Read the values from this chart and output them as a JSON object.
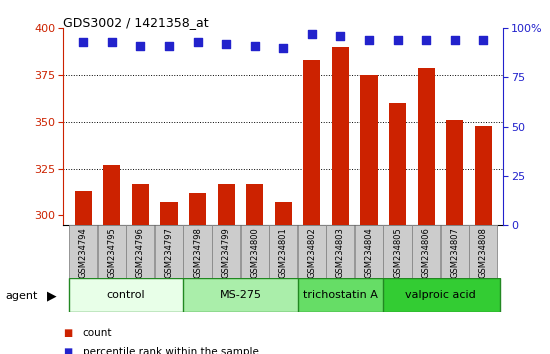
{
  "title": "GDS3002 / 1421358_at",
  "samples": [
    "GSM234794",
    "GSM234795",
    "GSM234796",
    "GSM234797",
    "GSM234798",
    "GSM234799",
    "GSM234800",
    "GSM234801",
    "GSM234802",
    "GSM234803",
    "GSM234804",
    "GSM234805",
    "GSM234806",
    "GSM234807",
    "GSM234808"
  ],
  "counts": [
    313,
    327,
    317,
    307,
    312,
    317,
    317,
    307,
    383,
    390,
    375,
    360,
    379,
    351,
    348
  ],
  "percentiles": [
    93,
    93,
    91,
    91,
    93,
    92,
    91,
    90,
    97,
    96,
    94,
    94,
    94,
    94,
    94
  ],
  "ylim_left": [
    295,
    400
  ],
  "ylim_right": [
    0,
    100
  ],
  "yticks_left": [
    300,
    325,
    350,
    375,
    400
  ],
  "yticks_right": [
    0,
    25,
    50,
    75,
    100
  ],
  "bar_color": "#cc2200",
  "dot_color": "#2222cc",
  "groups": [
    {
      "label": "control",
      "start": 0,
      "end": 3,
      "color": "#e8ffe8"
    },
    {
      "label": "MS-275",
      "start": 4,
      "end": 7,
      "color": "#aaeeaa"
    },
    {
      "label": "trichostatin A",
      "start": 8,
      "end": 10,
      "color": "#66dd66"
    },
    {
      "label": "valproic acid",
      "start": 11,
      "end": 14,
      "color": "#33cc33"
    }
  ],
  "agent_label": "agent",
  "legend_items": [
    {
      "label": "count",
      "color": "#cc2200"
    },
    {
      "label": "percentile rank within the sample",
      "color": "#2222cc"
    }
  ],
  "bg_color": "#ffffff",
  "label_bg": "#cccccc",
  "label_border": "#888888",
  "group_border": "#228822"
}
